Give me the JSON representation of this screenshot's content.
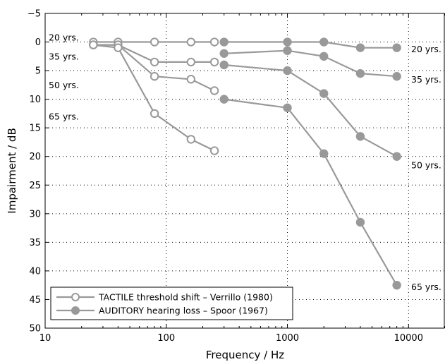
{
  "chart_data": {
    "type": "line",
    "x_scale": "log",
    "xlim": [
      10,
      20000
    ],
    "ylim": [
      50,
      -5
    ],
    "y_inverted": true,
    "grid": "dotted",
    "xlabel": "Frequency / Hz",
    "ylabel": "Impairment / dB",
    "x_ticks": [
      10,
      100,
      1000,
      10000
    ],
    "x_tick_labels": [
      "10",
      "100",
      "1000",
      "10000"
    ],
    "y_ticks": [
      -5,
      0,
      5,
      10,
      15,
      20,
      25,
      30,
      35,
      40,
      45,
      50
    ],
    "y_tick_labels": [
      "−5",
      "0",
      "5",
      "10",
      "15",
      "20",
      "25",
      "30",
      "35",
      "40",
      "45",
      "50"
    ],
    "legend_position": "bottom-left",
    "legend": [
      {
        "label": "TACTILE threshold shift – Verrillo (1980)",
        "marker": "open-circle"
      },
      {
        "label": "AUDITORY hearing loss – Spoor (1967)",
        "marker": "filled-circle"
      }
    ],
    "series_color": "#999999",
    "series": [
      {
        "group": "tactile",
        "age": "20 yrs.",
        "x": [
          25,
          40,
          80,
          160,
          250
        ],
        "y": [
          0,
          0,
          0,
          0,
          0
        ]
      },
      {
        "group": "tactile",
        "age": "35 yrs.",
        "x": [
          25,
          40,
          80,
          160,
          250
        ],
        "y": [
          0.5,
          0.5,
          3.5,
          3.5,
          3.5
        ]
      },
      {
        "group": "tactile",
        "age": "50 yrs.",
        "x": [
          25,
          40,
          80,
          160,
          250
        ],
        "y": [
          0.5,
          0.5,
          6,
          6.5,
          8.5
        ]
      },
      {
        "group": "tactile",
        "age": "65 yrs.",
        "x": [
          25,
          40,
          80,
          160,
          250
        ],
        "y": [
          0.5,
          1,
          12.5,
          17,
          19
        ]
      },
      {
        "group": "auditory",
        "age": "20 yrs.",
        "x": [
          300,
          1000,
          2000,
          4000,
          8000
        ],
        "y": [
          0,
          0,
          0,
          1,
          1
        ]
      },
      {
        "group": "auditory",
        "age": "35 yrs.",
        "x": [
          300,
          1000,
          2000,
          4000,
          8000
        ],
        "y": [
          2,
          1.5,
          2.5,
          5.5,
          6
        ]
      },
      {
        "group": "auditory",
        "age": "50 yrs.",
        "x": [
          300,
          1000,
          2000,
          4000,
          8000
        ],
        "y": [
          4,
          5,
          9,
          16.5,
          20
        ]
      },
      {
        "group": "auditory",
        "age": "65 yrs.",
        "x": [
          300,
          1000,
          2000,
          4000,
          8000
        ],
        "y": [
          10,
          11.5,
          19.5,
          31.5,
          42.5
        ]
      }
    ],
    "annotations_left": [
      {
        "text": "20 yrs.",
        "y": -0.8
      },
      {
        "text": "35 yrs.",
        "y": 2.5
      },
      {
        "text": "50 yrs.",
        "y": 7.5
      },
      {
        "text": "65 yrs.",
        "y": 13
      }
    ],
    "annotations_right": [
      {
        "text": "20 yrs.",
        "y": 1.2
      },
      {
        "text": "35 yrs.",
        "y": 6.5
      },
      {
        "text": "50 yrs.",
        "y": 21.5
      },
      {
        "text": "65 yrs.",
        "y": 42.8
      }
    ]
  }
}
